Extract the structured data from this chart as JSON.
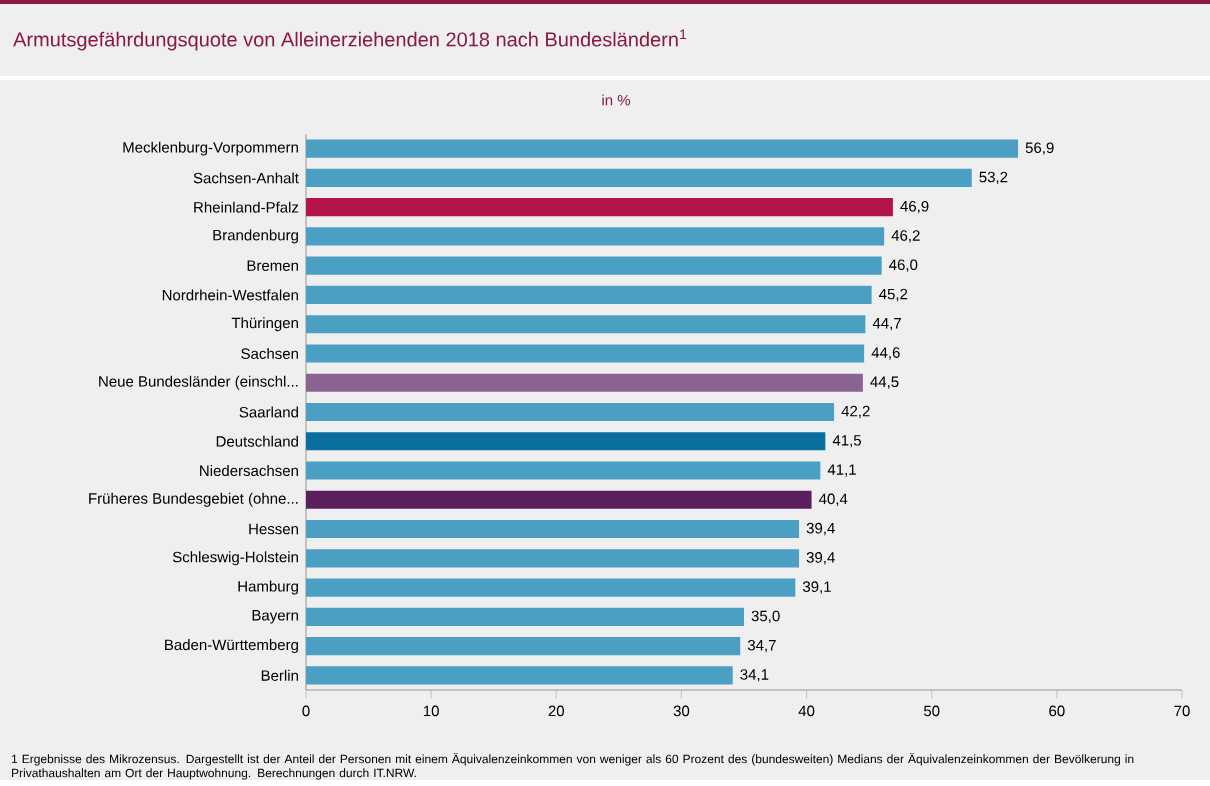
{
  "chart_data": {
    "type": "bar",
    "orientation": "horizontal",
    "title": "Armutsgefährdungsquote von Alleinerziehenden 2018 nach Bundesländern$^{1}$",
    "subtitle": "in %",
    "categories": [
      "Mecklenburg-Vorpommern",
      "Sachsen-Anhalt",
      "Rheinland-Pfalz",
      "Brandenburg",
      "Bremen",
      "Nordrhein-Westfalen",
      "Thüringen",
      "Sachsen",
      "Neue Bundesländer (einschl...",
      "Saarland",
      "Deutschland",
      "Niedersachsen",
      "Früheres Bundesgebiet (ohne...",
      "Hessen",
      "Schleswig-Holstein",
      "Hamburg",
      "Bayern",
      "Baden-Württemberg",
      "Berlin"
    ],
    "values": [
      56.9,
      53.2,
      46.9,
      46.2,
      46.0,
      45.2,
      44.7,
      44.6,
      44.5,
      42.2,
      41.5,
      41.1,
      40.4,
      39.4,
      39.4,
      39.1,
      35.0,
      34.7,
      34.1
    ],
    "value_labels": [
      "56,9",
      "53,2",
      "46,9",
      "46,2",
      "46,0",
      "45,2",
      "44,7",
      "44,6",
      "44,5",
      "42,2",
      "41,5",
      "41,1",
      "40,4",
      "39,4",
      "39,4",
      "39,1",
      "35,0",
      "34,7",
      "34,1"
    ],
    "colors": [
      "#4a9fc3",
      "#4a9fc3",
      "#b5134b",
      "#4a9fc3",
      "#4a9fc3",
      "#4a9fc3",
      "#4a9fc3",
      "#4a9fc3",
      "#8a6392",
      "#4a9fc3",
      "#0a6ea0",
      "#4a9fc3",
      "#5c1f5e",
      "#4a9fc3",
      "#4a9fc3",
      "#4a9fc3",
      "#4a9fc3",
      "#4a9fc3",
      "#4a9fc3"
    ],
    "xlim": [
      0,
      70
    ],
    "xticks": [
      0,
      10,
      20,
      30,
      40,
      50,
      60,
      70
    ],
    "grid": false,
    "annotations": [
      "1 Ergebnisse des Mikrozensus. Dargestellt ist der Anteil der Personen mit einem Äquivalenzeinkommen von weniger als 60 Prozent des (bundesweiten) Medians der Äquivalenzeinkommen der Bevölkerung in Privathaushalten am Ort der Hauptwohnung. Berechnungen durch IT.NRW."
    ]
  }
}
